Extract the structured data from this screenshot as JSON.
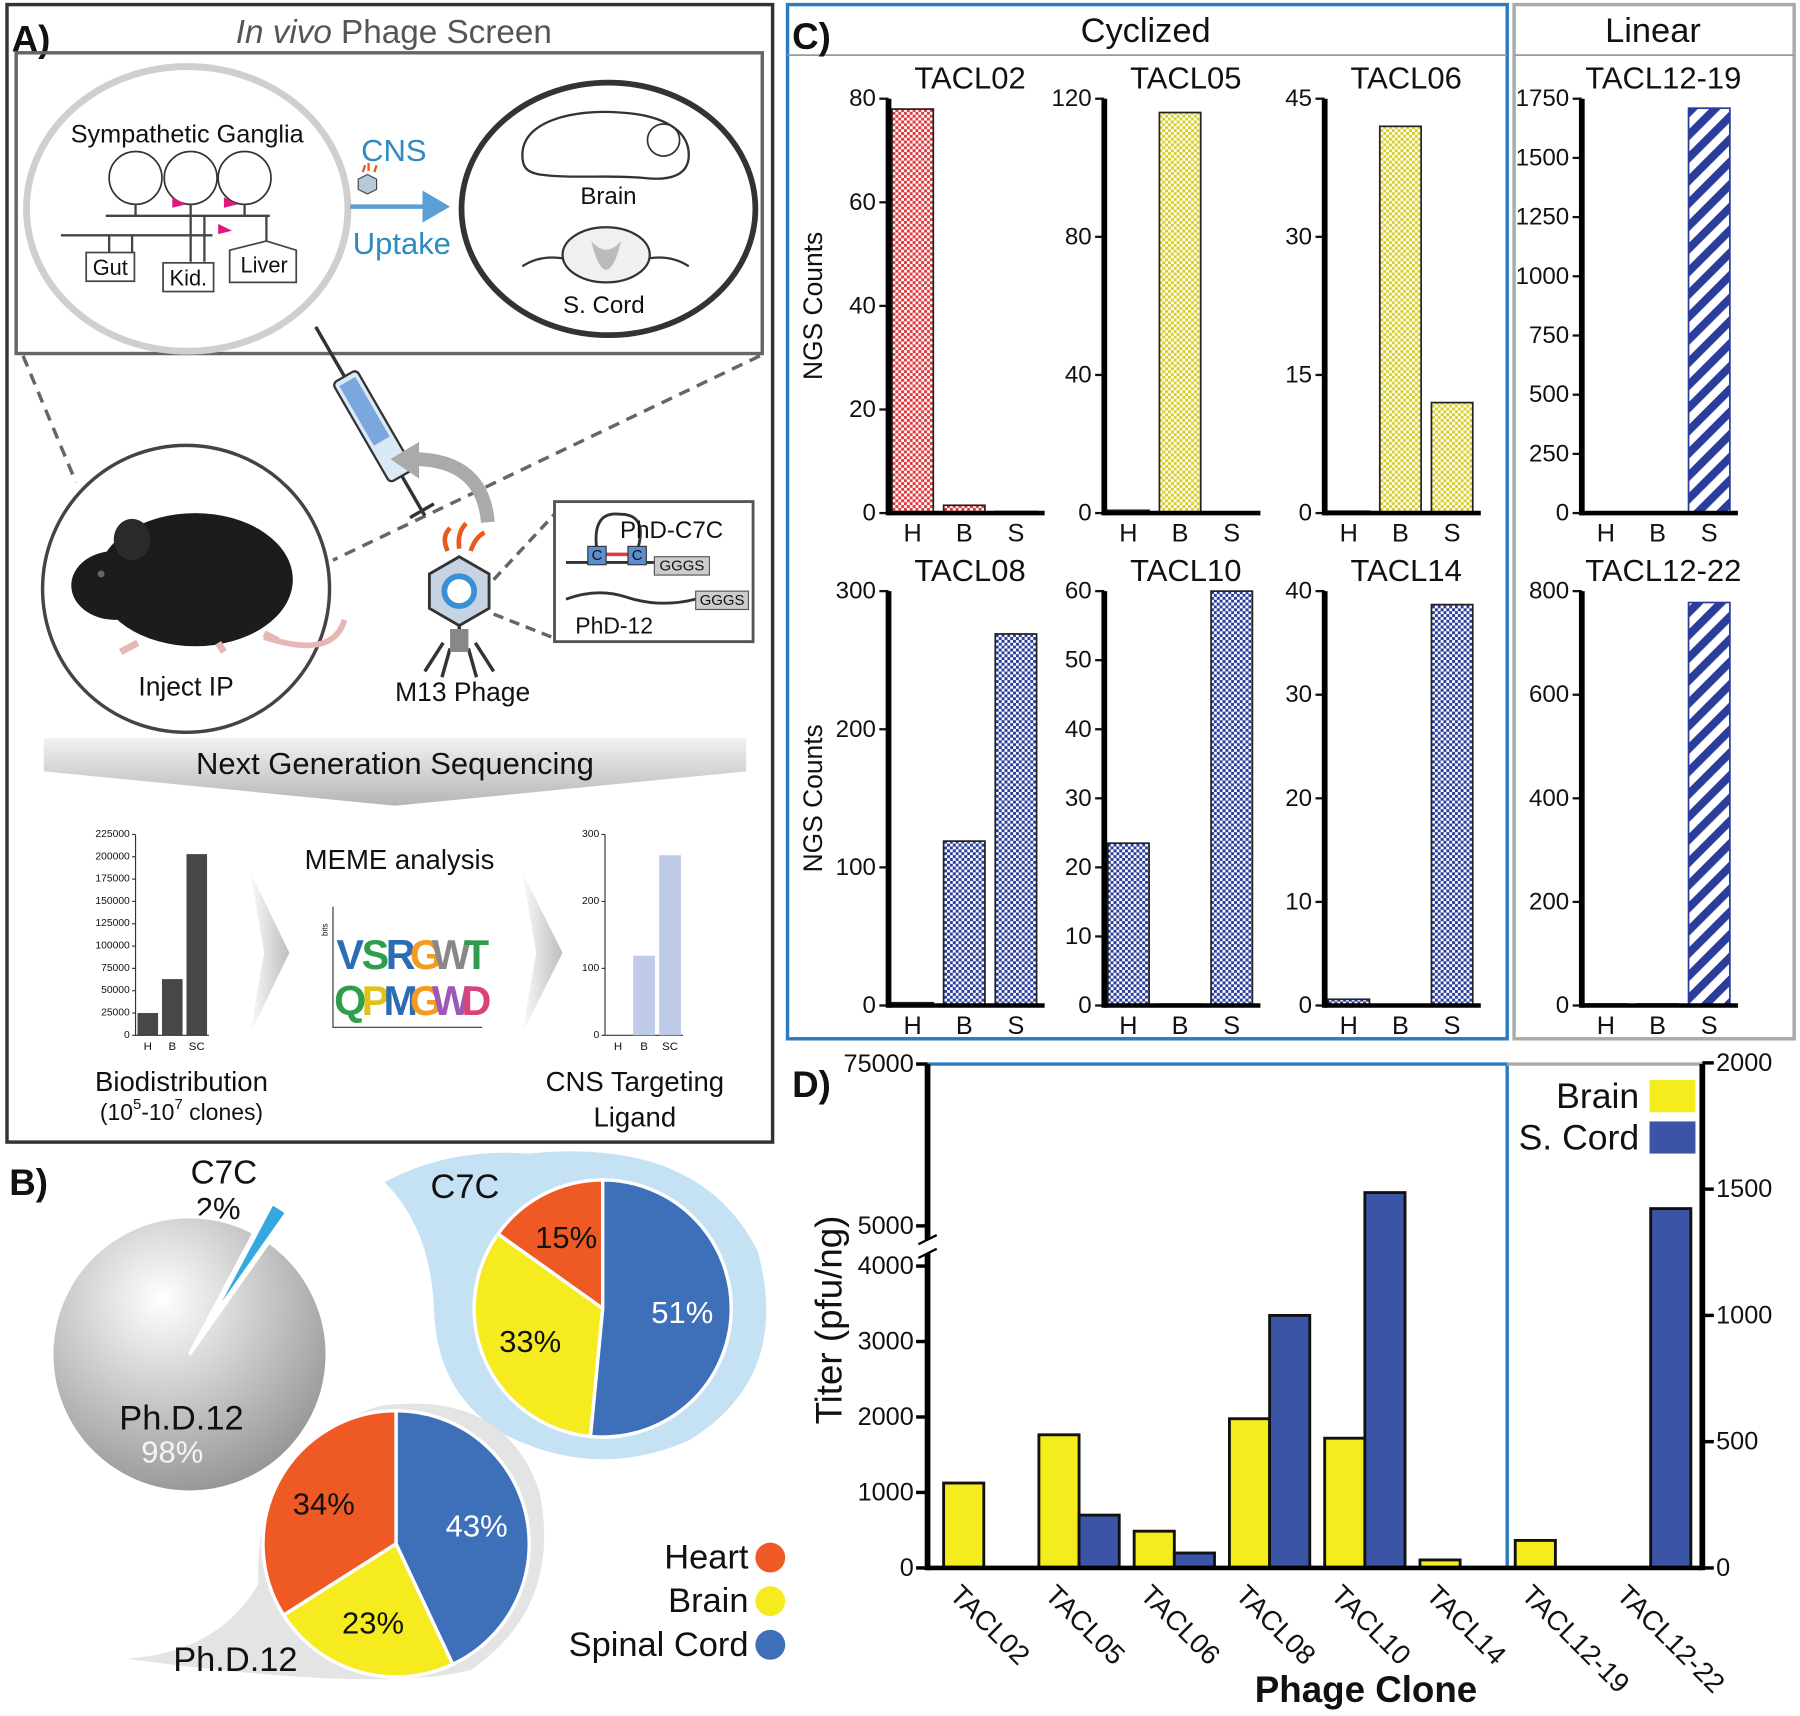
{
  "panels": [
    "A)",
    "B)",
    "C)",
    "D)"
  ],
  "panel_a": {
    "title_italic": "In vivo",
    "title": "Phage Screen",
    "ganglia": "Sympathetic Ganglia",
    "cns": "CNS",
    "uptake": "Uptake",
    "brain": "Brain",
    "cord": "S. Cord",
    "gut": "Gut",
    "kidney": "Kid.",
    "liver": "Liver",
    "inject": "Inject IP",
    "phage": "M13 Phage",
    "c7c": "PhD-C7C",
    "cys": [
      "C",
      "C"
    ],
    "linker": [
      "GGGS",
      "GGGS"
    ],
    "phd12": "PhD-12",
    "ngs": "Next Generation Sequencing",
    "meme": "MEME analysis",
    "logo_axis": "bits",
    "logo_top": [
      "V",
      "S",
      "R",
      "G",
      "W",
      "T"
    ],
    "logo_bottom": [
      "Q",
      "P",
      "M",
      "G",
      "W",
      "D"
    ],
    "biodist": "Biodistribution",
    "clones": [
      "(10",
      "5",
      "-10",
      "7",
      " clones)"
    ],
    "cns_target": [
      "CNS Targeting",
      "Ligand"
    ]
  },
  "panel_c": {
    "cyclized": "Cyclized",
    "linear": "Linear"
  },
  "chart_data": [
    {
      "type": "bar",
      "categories": [
        "H",
        "B",
        "SC"
      ],
      "values": [
        25000,
        63000,
        203000
      ],
      "color": "#333333",
      "ylim": [
        0,
        225000
      ],
      "yticks": [
        0,
        25000,
        50000,
        75000,
        100000,
        125000,
        150000,
        175000,
        200000,
        225000
      ]
    },
    {
      "type": "bar",
      "categories": [
        "H",
        "B",
        "SC"
      ],
      "values": [
        0,
        119,
        269
      ],
      "color": "#b9c5e8",
      "ylim": [
        0,
        300
      ],
      "yticks": [
        0,
        100,
        200,
        300
      ]
    },
    {
      "type": "pie",
      "categories": [
        "C7C",
        "Ph.D.12"
      ],
      "values": [
        2,
        98
      ],
      "value_labels": [
        "2%",
        "98%"
      ],
      "colors": [
        "#35a8e0",
        "#d9d9d9"
      ]
    },
    {
      "type": "pie",
      "title": "C7C",
      "categories": [
        "Heart",
        "Brain",
        "Spinal Cord"
      ],
      "values": [
        15,
        33,
        51
      ],
      "value_labels": [
        "15%",
        "33%",
        "51%"
      ],
      "colors": [
        "#ef5a24",
        "#f5eb1e",
        "#3e6fb9"
      ]
    },
    {
      "type": "pie",
      "title": "Ph.D.12",
      "values": [
        34,
        23,
        43
      ],
      "value_labels": [
        "34%",
        "23%",
        "43%"
      ],
      "colors": [
        "#ef5a24",
        "#f5eb1e",
        "#3e6fb9"
      ]
    },
    {
      "type": "bar",
      "title": "TACL02",
      "ylabel": "NGS Counts",
      "categories": [
        "H",
        "B",
        "S"
      ],
      "values": [
        78,
        1.5,
        0.3
      ],
      "color": "#e0393e",
      "pattern": "dots",
      "ylim": [
        0,
        80
      ],
      "yticks": [
        0,
        20,
        40,
        60,
        80
      ]
    },
    {
      "type": "bar",
      "title": "TACL05",
      "categories": [
        "H",
        "B",
        "S"
      ],
      "values": [
        0.8,
        116,
        0.3
      ],
      "color": "#d8cf2a",
      "pattern": "dots",
      "ylim": [
        0,
        120
      ],
      "yticks": [
        0,
        40,
        80,
        120
      ]
    },
    {
      "type": "bar",
      "title": "TACL06",
      "categories": [
        "H",
        "B",
        "S"
      ],
      "values": [
        0.2,
        42,
        12
      ],
      "color": "#d8cf2a",
      "pattern": "dots",
      "ylim": [
        0,
        45
      ],
      "yticks": [
        0,
        15,
        30,
        45
      ]
    },
    {
      "type": "bar",
      "title": "TACL12-19",
      "categories": [
        "H",
        "B",
        "S"
      ],
      "values": [
        5,
        5,
        1710
      ],
      "color": "#2b3d9b",
      "pattern": "stripes",
      "ylim": [
        0,
        1750
      ],
      "yticks": [
        0,
        250,
        500,
        750,
        1000,
        1250,
        1500,
        1750
      ]
    },
    {
      "type": "bar",
      "title": "TACL08",
      "ylabel": "NGS Counts",
      "categories": [
        "H",
        "B",
        "S"
      ],
      "values": [
        2,
        119,
        269
      ],
      "color": "#2b3d9b",
      "pattern": "dots",
      "ylim": [
        0,
        300
      ],
      "yticks": [
        0,
        100,
        200,
        300
      ]
    },
    {
      "type": "bar",
      "title": "TACL10",
      "categories": [
        "H",
        "B",
        "S"
      ],
      "values": [
        23.5,
        0.2,
        60
      ],
      "color": "#2b3d9b",
      "pattern": "dots",
      "ylim": [
        0,
        60
      ],
      "yticks": [
        0,
        10,
        20,
        30,
        40,
        50,
        60
      ]
    },
    {
      "type": "bar",
      "title": "TACL14",
      "categories": [
        "H",
        "B",
        "S"
      ],
      "values": [
        0.6,
        0.1,
        38.7
      ],
      "color": "#2b3d9b",
      "pattern": "dots",
      "ylim": [
        0,
        40
      ],
      "yticks": [
        0,
        10,
        20,
        30,
        40
      ]
    },
    {
      "type": "bar",
      "title": "TACL12-22",
      "categories": [
        "H",
        "B",
        "S"
      ],
      "values": [
        3,
        3,
        778
      ],
      "color": "#2b3d9b",
      "pattern": "stripes",
      "ylim": [
        0,
        800
      ],
      "yticks": [
        0,
        200,
        400,
        600,
        800
      ]
    },
    {
      "type": "bar",
      "ylabel": "Titer (pfu/ng)",
      "xlabel": "Phage Clone",
      "categories": [
        "TACL02",
        "TACL05",
        "TACL06",
        "TACL08",
        "TACL10",
        "TACL14",
        "TACL12-19",
        "TACL12-22"
      ],
      "series": [
        {
          "name": "Brain",
          "color": "#f4ec1c",
          "values": [
            1125,
            1764,
            487,
            1977,
            1719,
            106,
            null,
            null
          ]
        },
        {
          "name": "S. Cord",
          "color": "#3a55a5",
          "values": [
            0,
            700,
            198,
            3346,
            19400,
            0,
            null,
            null
          ]
        },
        {
          "color": "#f4ec1c",
          "axis": "y2",
          "values": [
            null,
            null,
            null,
            null,
            null,
            null,
            109,
            0
          ]
        },
        {
          "color": "#3a55a5",
          "axis": "y2",
          "values": [
            null,
            null,
            null,
            null,
            null,
            null,
            0,
            1423
          ]
        }
      ],
      "ylim": [
        0,
        75000
      ],
      "axis_break": [
        4000,
        5000
      ],
      "yticks": [
        0,
        1000,
        2000,
        3000,
        4000,
        5000,
        75000
      ],
      "y2lim": [
        0,
        2000
      ],
      "y2ticks": [
        0,
        500,
        1000,
        1500,
        2000
      ],
      "legend": "upper right"
    }
  ]
}
